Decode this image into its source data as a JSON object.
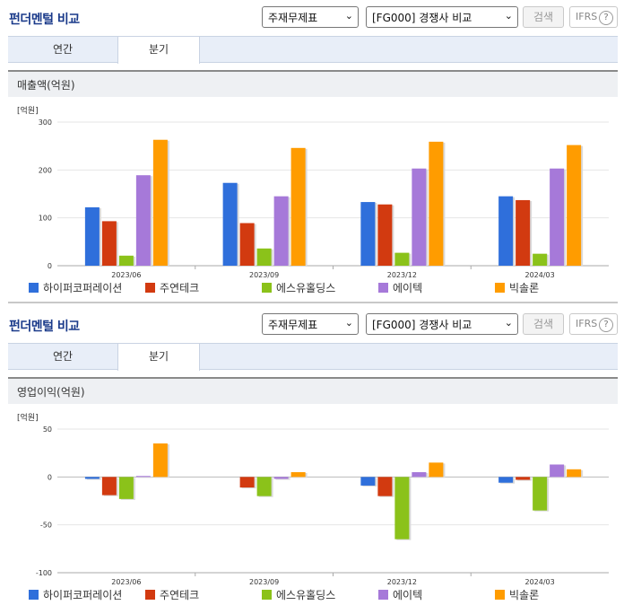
{
  "panels": [
    {
      "title": "펀더멘털 비교",
      "select1": "주재무제표",
      "select2": "[FG000] 경쟁사 비교",
      "search_label": "검색",
      "ifrs_label": "IFRS",
      "tabs": [
        {
          "label": "연간"
        },
        {
          "label": "분기"
        }
      ],
      "active_tab": "분기",
      "metric_title": "매출액(억원)"
    },
    {
      "title": "펀더멘털 비교",
      "select1": "주재무제표",
      "select2": "[FG000] 경쟁사 비교",
      "search_label": "검색",
      "ifrs_label": "IFRS",
      "tabs": [
        {
          "label": "연간"
        },
        {
          "label": "분기"
        }
      ],
      "active_tab": "분기",
      "metric_title": "영업이익(억원)"
    }
  ],
  "colors": [
    "#2f6fdb",
    "#d23a10",
    "#8bc21a",
    "#a679d9",
    "#ff9c00"
  ],
  "chart_data": [
    {
      "type": "bar",
      "title": "매출액(억원)",
      "unit_label": "[억원]",
      "categories": [
        "2023/06",
        "2023/09",
        "2023/12",
        "2024/03"
      ],
      "ylim": [
        0,
        300
      ],
      "yticks": [
        0,
        100,
        200,
        300
      ],
      "series": [
        {
          "name": "하이퍼코퍼레이션",
          "values": [
            122,
            173,
            133,
            145
          ]
        },
        {
          "name": "주연테크",
          "values": [
            93,
            89,
            128,
            137
          ]
        },
        {
          "name": "에스유홀딩스",
          "values": [
            21,
            36,
            27,
            25
          ]
        },
        {
          "name": "에이텍",
          "values": [
            189,
            145,
            203,
            203
          ]
        },
        {
          "name": "빅솔론",
          "values": [
            263,
            246,
            259,
            252
          ]
        }
      ],
      "legend": "bottom"
    },
    {
      "type": "bar",
      "title": "영업이익(억원)",
      "unit_label": "[억원]",
      "categories": [
        "2023/06",
        "2023/09",
        "2023/12",
        "2024/03"
      ],
      "ylim": [
        -100,
        50
      ],
      "yticks": [
        -100,
        -50,
        0,
        50
      ],
      "series": [
        {
          "name": "하이퍼코퍼레이션",
          "values": [
            -2,
            0,
            -9,
            -6
          ]
        },
        {
          "name": "주연테크",
          "values": [
            -19,
            -11,
            -20,
            -3
          ]
        },
        {
          "name": "에스유홀딩스",
          "values": [
            -23,
            -20,
            -65,
            -35
          ]
        },
        {
          "name": "에이텍",
          "values": [
            1,
            -2,
            5,
            13
          ]
        },
        {
          "name": "빅솔론",
          "values": [
            35,
            5,
            15,
            8
          ]
        }
      ],
      "legend": "bottom"
    }
  ]
}
